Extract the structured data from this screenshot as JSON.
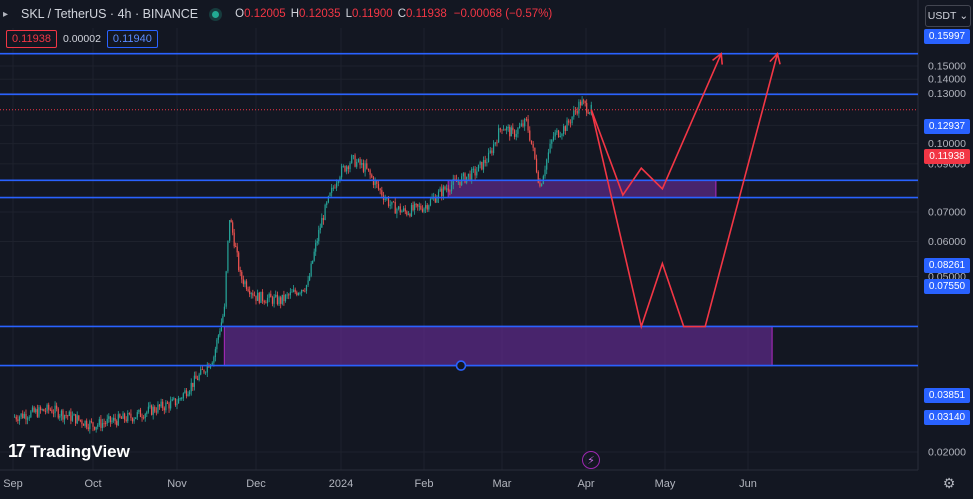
{
  "header": {
    "collapse_icon": "chevron-icon",
    "symbol": "SKL / TetherUS · 4h · BINANCE",
    "ohlc": [
      {
        "key": "O",
        "value": "0.12005"
      },
      {
        "key": "H",
        "value": "0.12035"
      },
      {
        "key": "L",
        "value": "0.11900"
      },
      {
        "key": "C",
        "value": "0.11938"
      }
    ],
    "change": "−0.00068 (−0.57%)",
    "sell_price": "0.11938",
    "spread": "0.00002",
    "buy_price": "0.11940",
    "currency": "USDT",
    "currency_icon": "chevron-down-icon"
  },
  "branding": {
    "logo_mark": "17",
    "logo_text": "TradingView"
  },
  "axis": {
    "y_ticks": [
      "0.15000",
      "0.14000",
      "0.13000",
      "0.11000",
      "0.10000",
      "0.09000",
      "0.07000",
      "0.06000",
      "0.05000",
      "0.02000"
    ],
    "x_ticks": [
      "Sep",
      "Oct",
      "Nov",
      "Dec",
      "2024",
      "Feb",
      "Mar",
      "Apr",
      "May",
      "Jun"
    ]
  },
  "levels": {
    "l1": "0.15997",
    "l2": "0.12937",
    "current": "0.11938",
    "l3": "0.08261",
    "l4": "0.07550",
    "l5": "0.03851",
    "l6": "0.03140"
  },
  "colors": {
    "background": "#131722",
    "up": "#26a69a",
    "down": "#ef5350",
    "level_line": "#2962ff",
    "projection": "#f23645",
    "zone_fill": "#5b2a86"
  },
  "chart_data": {
    "type": "candlestick",
    "title": "SKL / TetherUS · 4h · BINANCE",
    "xlabel": "",
    "ylabel": "",
    "x_range": [
      "2023-09-01",
      "2024-06-20"
    ],
    "ylim": [
      0.018,
      0.172
    ],
    "grid": true,
    "price_path": {
      "x": [
        "2023-09-01",
        "2023-09-15",
        "2023-10-01",
        "2023-10-15",
        "2023-11-01",
        "2023-11-10",
        "2023-11-15",
        "2023-11-19",
        "2023-11-21",
        "2023-11-25",
        "2023-12-01",
        "2023-12-10",
        "2023-12-20",
        "2023-12-25",
        "2023-12-31",
        "2024-01-05",
        "2024-01-10",
        "2024-01-15",
        "2024-01-20",
        "2024-01-25",
        "2024-02-01",
        "2024-02-10",
        "2024-02-15",
        "2024-02-20",
        "2024-02-25",
        "2024-03-01",
        "2024-03-05",
        "2024-03-10",
        "2024-03-15",
        "2024-03-20",
        "2024-03-25",
        "2024-03-30",
        "2024-04-03"
      ],
      "close": [
        0.024,
        0.025,
        0.023,
        0.024,
        0.026,
        0.03,
        0.033,
        0.042,
        0.068,
        0.05,
        0.045,
        0.044,
        0.048,
        0.067,
        0.085,
        0.092,
        0.088,
        0.079,
        0.072,
        0.07,
        0.072,
        0.08,
        0.083,
        0.086,
        0.093,
        0.11,
        0.105,
        0.112,
        0.08,
        0.104,
        0.11,
        0.124,
        0.119
      ]
    },
    "zones": [
      {
        "from": "2024-02-10",
        "to": "2024-05-20",
        "top": 0.08261,
        "bottom": 0.0755
      },
      {
        "from": "2023-11-19",
        "to": "2024-06-10",
        "top": 0.03851,
        "bottom": 0.0314
      }
    ],
    "projections": [
      {
        "x": [
          "2024-04-03",
          "2024-04-15",
          "2024-04-22",
          "2024-04-30",
          "2024-05-22"
        ],
        "y": [
          0.1195,
          0.0765,
          0.088,
          0.079,
          0.16
        ]
      },
      {
        "x": [
          "2024-04-03",
          "2024-04-22",
          "2024-04-30",
          "2024-05-08",
          "2024-05-16",
          "2024-06-12"
        ],
        "y": [
          0.1195,
          0.0385,
          0.0535,
          0.0385,
          0.0385,
          0.16
        ]
      }
    ]
  }
}
